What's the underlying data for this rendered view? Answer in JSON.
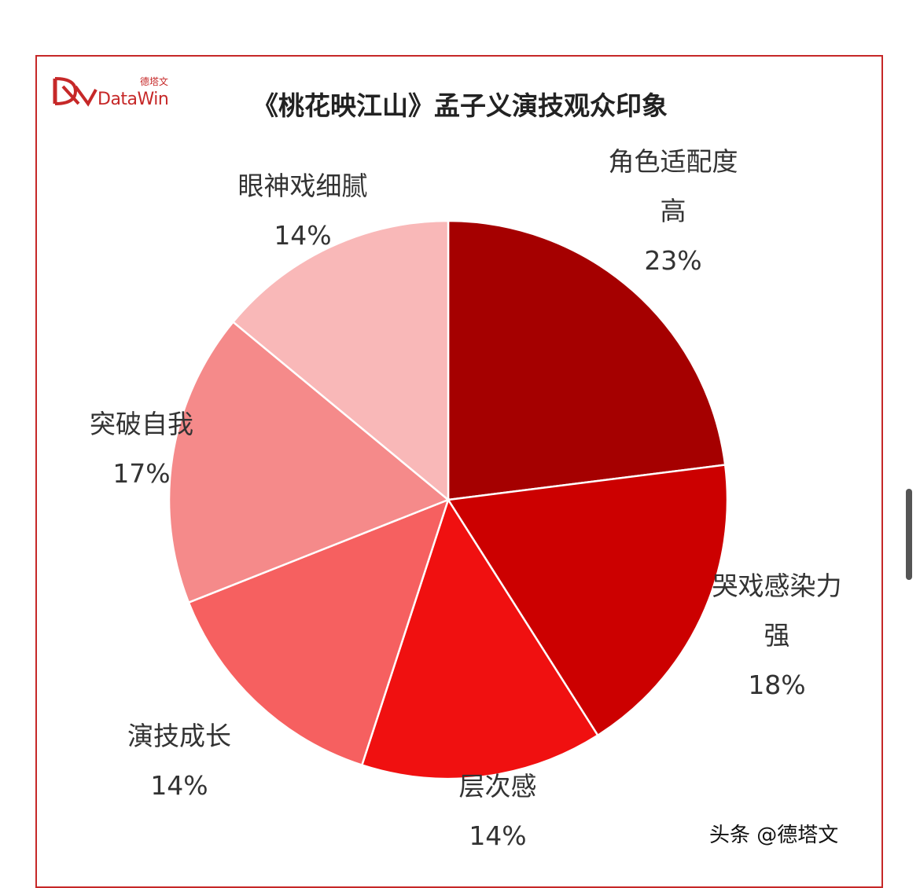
{
  "logo": {
    "text": "DataWin",
    "cn_text": "德塔文"
  },
  "watermark": "头条 @德塔文",
  "colors": {
    "border": "#c62828",
    "brand": "#c62828"
  },
  "chart_data": {
    "type": "pie",
    "title": "《桃花映江山》孟子义演技观众印象",
    "slices": [
      {
        "label": "角色适配度高",
        "value": 23,
        "value_label": "23%",
        "color": "#a50000"
      },
      {
        "label": "哭戏感染力强",
        "value": 18,
        "value_label": "18%",
        "color": "#cc0000"
      },
      {
        "label": "层次感",
        "value": 14,
        "value_label": "14%",
        "color": "#f01010"
      },
      {
        "label": "演技成长",
        "value": 14,
        "value_label": "14%",
        "color": "#f66060"
      },
      {
        "label": "突破自我",
        "value": 17,
        "value_label": "17%",
        "color": "#f58a8a"
      },
      {
        "label": "眼神戏细腻",
        "value": 14,
        "value_label": "14%",
        "color": "#f9b8b8"
      }
    ],
    "start": "12 o'clock",
    "direction": "clockwise",
    "legend": "none"
  }
}
